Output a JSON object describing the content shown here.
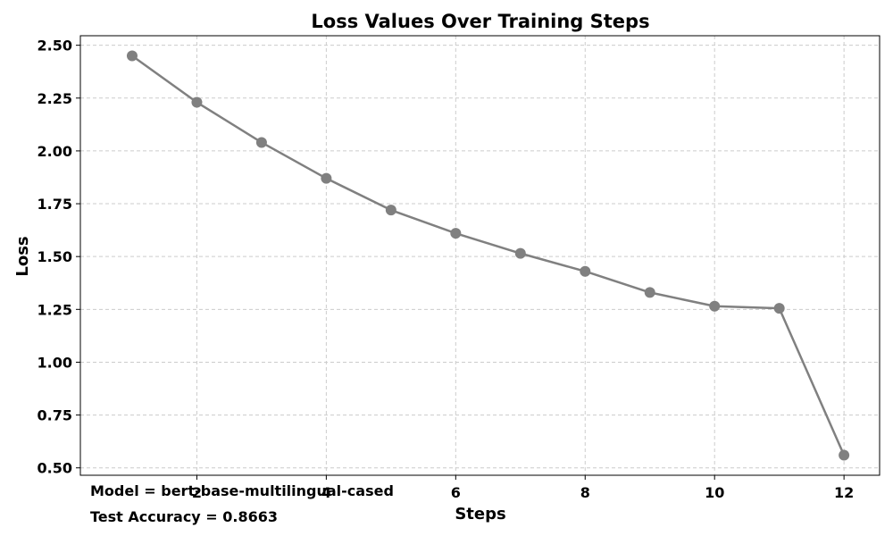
{
  "chart_data": {
    "type": "line",
    "title": "Loss Values Over Training Steps",
    "xlabel": "Steps",
    "ylabel": "Loss",
    "x": [
      1,
      2,
      3,
      4,
      5,
      6,
      7,
      8,
      9,
      10,
      11,
      12
    ],
    "series": [
      {
        "values": [
          2.45,
          2.23,
          2.04,
          1.87,
          1.72,
          1.61,
          1.515,
          1.43,
          1.33,
          1.265,
          1.255,
          0.56
        ],
        "color": "#808080"
      }
    ],
    "xticks": [
      2,
      4,
      6,
      8,
      10,
      12
    ],
    "yticks": [
      "0.50",
      "0.75",
      "1.00",
      "1.25",
      "1.50",
      "1.75",
      "2.00",
      "2.25",
      "2.50"
    ],
    "xlim": [
      0.2,
      12.55
    ],
    "ylim": [
      0.465,
      2.545
    ],
    "grid": true,
    "annotations": [
      "Model = bert-base-multilingual-cased",
      "Test Accuracy = 0.8663"
    ]
  }
}
